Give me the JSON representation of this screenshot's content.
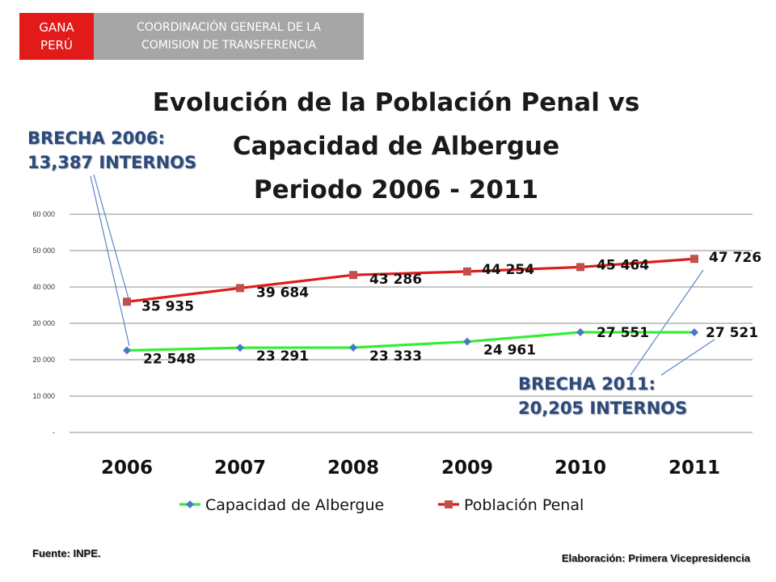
{
  "header": {
    "badge_lines": [
      "GANA",
      "PERÚ"
    ],
    "subtitle_lines": [
      "COORDINACIÓN GENERAL DE LA",
      "COMISION DE TRANSFERENCIA"
    ]
  },
  "callouts": {
    "gap_2006": [
      "BRECHA 2006:",
      "13,387 INTERNOS"
    ],
    "gap_2011": [
      "BRECHA 2011:",
      "20,205 INTERNOS"
    ]
  },
  "footer": {
    "source": "Fuente: INPE.",
    "credit": "Elaboración: Primera Vicepresidencia"
  },
  "colors": {
    "badge_red": "#e21a1a",
    "badge_grey": "#a6a6a6",
    "capacity_series": "#33ee33",
    "population_series": "#e01b1b",
    "capacity_marker": "#4a79c4",
    "population_marker": "#c0504d",
    "callout_text": "#2d4a7a"
  },
  "chart_data": {
    "type": "line",
    "title": "Evolución de la Población Penal vs Capacidad de Albergue Periodo 2006 - 2011",
    "title_lines": [
      "Evolución de la Población Penal vs",
      "Capacidad de Albergue",
      "Periodo 2006 - 2011"
    ],
    "xlabel": "",
    "ylabel": "",
    "categories": [
      "2006",
      "2007",
      "2008",
      "2009",
      "2010",
      "2011"
    ],
    "ylim": [
      0,
      60000
    ],
    "yticks": [
      0,
      10000,
      20000,
      30000,
      40000,
      50000,
      60000
    ],
    "ytick_labels": [
      "-",
      "10 000",
      "20 000",
      "30 000",
      "40 000",
      "50 000",
      "60 000"
    ],
    "grid": true,
    "legend_position": "bottom",
    "series": [
      {
        "name": "Capacidad de Albergue",
        "values": [
          22548,
          23291,
          23333,
          24961,
          27551,
          27521
        ],
        "labels": [
          "22 548",
          "23 291",
          "23 333",
          "24 961",
          "27 551",
          "27 521"
        ],
        "marker": "diamond"
      },
      {
        "name": "Población Penal",
        "values": [
          35935,
          39684,
          43286,
          44254,
          45464,
          47726
        ],
        "labels": [
          "35 935",
          "39 684",
          "43 286",
          "44 254",
          "45 464",
          "47 726"
        ],
        "marker": "square"
      }
    ]
  }
}
